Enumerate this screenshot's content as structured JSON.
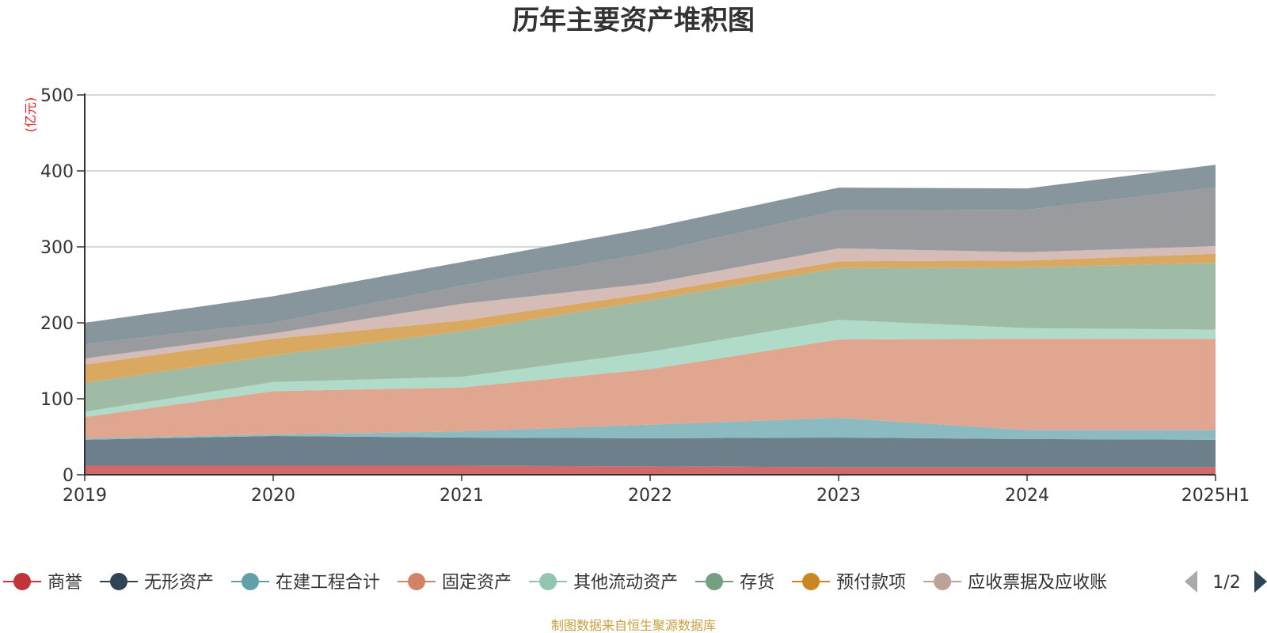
{
  "chart_data": {
    "type": "area",
    "stacked": true,
    "title": "历年主要资产堆积图",
    "ylabel": "(亿元)",
    "ylim": [
      0,
      500
    ],
    "yticks": [
      0,
      100,
      200,
      300,
      400,
      500
    ],
    "categories": [
      "2019",
      "2020",
      "2021",
      "2022",
      "2023",
      "2024",
      "2025H1"
    ],
    "grid": true,
    "series": [
      {
        "name": "商誉",
        "color": "#d06a6a",
        "values": [
          12,
          12,
          12,
          11,
          10,
          10,
          10
        ]
      },
      {
        "name": "无形资产",
        "color": "#6e7f8c",
        "values": [
          34,
          39,
          37,
          37,
          39,
          37,
          36
        ]
      },
      {
        "name": "在建工程合计",
        "color": "#8bbac0",
        "values": [
          2,
          2,
          8,
          18,
          26,
          12,
          13
        ]
      },
      {
        "name": "固定资产",
        "color": "#e0a68f",
        "values": [
          28,
          57,
          58,
          73,
          103,
          120,
          120
        ]
      },
      {
        "name": "其他流动资产",
        "color": "#b0dbc8",
        "values": [
          7,
          12,
          14,
          23,
          26,
          14,
          12
        ]
      },
      {
        "name": "存货",
        "color": "#9fbba6",
        "values": [
          38,
          35,
          60,
          68,
          68,
          80,
          88
        ]
      },
      {
        "name": "预付款项",
        "color": "#daa961",
        "values": [
          24,
          22,
          14,
          9,
          9,
          9,
          12
        ]
      },
      {
        "name": "应收票据及应收账款",
        "color": "#d6bcb7",
        "values": [
          8,
          7,
          22,
          13,
          17,
          11,
          10
        ]
      },
      {
        "name": "",
        "color": "#9a9b9f",
        "values": [
          19,
          14,
          24,
          40,
          50,
          56,
          77
        ]
      },
      {
        "name": "",
        "color": "#87959c",
        "values": [
          28,
          35,
          31,
          33,
          30,
          28,
          30
        ]
      }
    ]
  },
  "legend": {
    "items": [
      {
        "label": "商誉",
        "color": "#c0343a"
      },
      {
        "label": "无形资产",
        "color": "#2f4554"
      },
      {
        "label": "在建工程合计",
        "color": "#61a0a8"
      },
      {
        "label": "固定资产",
        "color": "#d48265"
      },
      {
        "label": "其他流动资产",
        "color": "#91c7ae"
      },
      {
        "label": "存货",
        "color": "#749f83"
      },
      {
        "label": "预付款项",
        "color": "#ca8622"
      },
      {
        "label": "应收票据及应收账",
        "color": "#bda29a"
      }
    ],
    "page": "1/2",
    "prev_color": "#aaaaaa",
    "next_color": "#2f4554"
  },
  "footer": {
    "source": "制图数据来自恒生聚源数据库"
  }
}
